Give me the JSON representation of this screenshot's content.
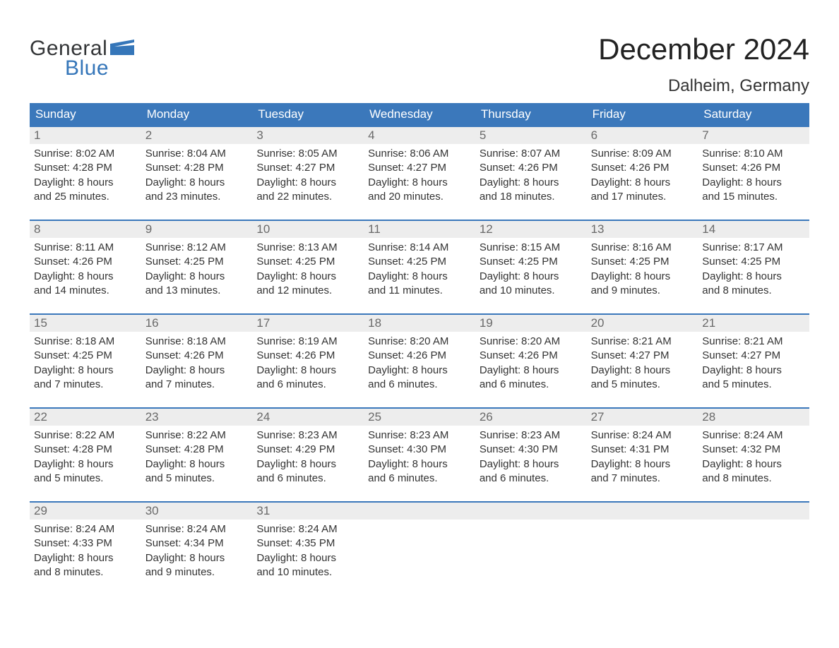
{
  "brand": {
    "word_general": "General",
    "word_blue": "Blue",
    "flag_color": "#3576b9",
    "text_dark": "#333537"
  },
  "header": {
    "title": "December 2024",
    "location": "Dalheim, Germany"
  },
  "colors": {
    "header_bg": "#3b78bb",
    "header_text": "#ffffff",
    "row_border": "#3b78bb",
    "daynum_bg": "#ededed",
    "daynum_text": "#6a6a6a",
    "body_text": "#333333",
    "page_bg": "#ffffff"
  },
  "layout": {
    "columns": 7,
    "rows": 5,
    "cell_font_size_pt": 11,
    "header_font_size_pt": 13,
    "title_font_size_pt": 32,
    "location_font_size_pt": 18
  },
  "day_headers": [
    "Sunday",
    "Monday",
    "Tuesday",
    "Wednesday",
    "Thursday",
    "Friday",
    "Saturday"
  ],
  "weeks": [
    [
      {
        "n": "1",
        "sr": "Sunrise: 8:02 AM",
        "ss": "Sunset: 4:28 PM",
        "d1": "Daylight: 8 hours",
        "d2": "and 25 minutes."
      },
      {
        "n": "2",
        "sr": "Sunrise: 8:04 AM",
        "ss": "Sunset: 4:28 PM",
        "d1": "Daylight: 8 hours",
        "d2": "and 23 minutes."
      },
      {
        "n": "3",
        "sr": "Sunrise: 8:05 AM",
        "ss": "Sunset: 4:27 PM",
        "d1": "Daylight: 8 hours",
        "d2": "and 22 minutes."
      },
      {
        "n": "4",
        "sr": "Sunrise: 8:06 AM",
        "ss": "Sunset: 4:27 PM",
        "d1": "Daylight: 8 hours",
        "d2": "and 20 minutes."
      },
      {
        "n": "5",
        "sr": "Sunrise: 8:07 AM",
        "ss": "Sunset: 4:26 PM",
        "d1": "Daylight: 8 hours",
        "d2": "and 18 minutes."
      },
      {
        "n": "6",
        "sr": "Sunrise: 8:09 AM",
        "ss": "Sunset: 4:26 PM",
        "d1": "Daylight: 8 hours",
        "d2": "and 17 minutes."
      },
      {
        "n": "7",
        "sr": "Sunrise: 8:10 AM",
        "ss": "Sunset: 4:26 PM",
        "d1": "Daylight: 8 hours",
        "d2": "and 15 minutes."
      }
    ],
    [
      {
        "n": "8",
        "sr": "Sunrise: 8:11 AM",
        "ss": "Sunset: 4:26 PM",
        "d1": "Daylight: 8 hours",
        "d2": "and 14 minutes."
      },
      {
        "n": "9",
        "sr": "Sunrise: 8:12 AM",
        "ss": "Sunset: 4:25 PM",
        "d1": "Daylight: 8 hours",
        "d2": "and 13 minutes."
      },
      {
        "n": "10",
        "sr": "Sunrise: 8:13 AM",
        "ss": "Sunset: 4:25 PM",
        "d1": "Daylight: 8 hours",
        "d2": "and 12 minutes."
      },
      {
        "n": "11",
        "sr": "Sunrise: 8:14 AM",
        "ss": "Sunset: 4:25 PM",
        "d1": "Daylight: 8 hours",
        "d2": "and 11 minutes."
      },
      {
        "n": "12",
        "sr": "Sunrise: 8:15 AM",
        "ss": "Sunset: 4:25 PM",
        "d1": "Daylight: 8 hours",
        "d2": "and 10 minutes."
      },
      {
        "n": "13",
        "sr": "Sunrise: 8:16 AM",
        "ss": "Sunset: 4:25 PM",
        "d1": "Daylight: 8 hours",
        "d2": "and 9 minutes."
      },
      {
        "n": "14",
        "sr": "Sunrise: 8:17 AM",
        "ss": "Sunset: 4:25 PM",
        "d1": "Daylight: 8 hours",
        "d2": "and 8 minutes."
      }
    ],
    [
      {
        "n": "15",
        "sr": "Sunrise: 8:18 AM",
        "ss": "Sunset: 4:25 PM",
        "d1": "Daylight: 8 hours",
        "d2": "and 7 minutes."
      },
      {
        "n": "16",
        "sr": "Sunrise: 8:18 AM",
        "ss": "Sunset: 4:26 PM",
        "d1": "Daylight: 8 hours",
        "d2": "and 7 minutes."
      },
      {
        "n": "17",
        "sr": "Sunrise: 8:19 AM",
        "ss": "Sunset: 4:26 PM",
        "d1": "Daylight: 8 hours",
        "d2": "and 6 minutes."
      },
      {
        "n": "18",
        "sr": "Sunrise: 8:20 AM",
        "ss": "Sunset: 4:26 PM",
        "d1": "Daylight: 8 hours",
        "d2": "and 6 minutes."
      },
      {
        "n": "19",
        "sr": "Sunrise: 8:20 AM",
        "ss": "Sunset: 4:26 PM",
        "d1": "Daylight: 8 hours",
        "d2": "and 6 minutes."
      },
      {
        "n": "20",
        "sr": "Sunrise: 8:21 AM",
        "ss": "Sunset: 4:27 PM",
        "d1": "Daylight: 8 hours",
        "d2": "and 5 minutes."
      },
      {
        "n": "21",
        "sr": "Sunrise: 8:21 AM",
        "ss": "Sunset: 4:27 PM",
        "d1": "Daylight: 8 hours",
        "d2": "and 5 minutes."
      }
    ],
    [
      {
        "n": "22",
        "sr": "Sunrise: 8:22 AM",
        "ss": "Sunset: 4:28 PM",
        "d1": "Daylight: 8 hours",
        "d2": "and 5 minutes."
      },
      {
        "n": "23",
        "sr": "Sunrise: 8:22 AM",
        "ss": "Sunset: 4:28 PM",
        "d1": "Daylight: 8 hours",
        "d2": "and 5 minutes."
      },
      {
        "n": "24",
        "sr": "Sunrise: 8:23 AM",
        "ss": "Sunset: 4:29 PM",
        "d1": "Daylight: 8 hours",
        "d2": "and 6 minutes."
      },
      {
        "n": "25",
        "sr": "Sunrise: 8:23 AM",
        "ss": "Sunset: 4:30 PM",
        "d1": "Daylight: 8 hours",
        "d2": "and 6 minutes."
      },
      {
        "n": "26",
        "sr": "Sunrise: 8:23 AM",
        "ss": "Sunset: 4:30 PM",
        "d1": "Daylight: 8 hours",
        "d2": "and 6 minutes."
      },
      {
        "n": "27",
        "sr": "Sunrise: 8:24 AM",
        "ss": "Sunset: 4:31 PM",
        "d1": "Daylight: 8 hours",
        "d2": "and 7 minutes."
      },
      {
        "n": "28",
        "sr": "Sunrise: 8:24 AM",
        "ss": "Sunset: 4:32 PM",
        "d1": "Daylight: 8 hours",
        "d2": "and 8 minutes."
      }
    ],
    [
      {
        "n": "29",
        "sr": "Sunrise: 8:24 AM",
        "ss": "Sunset: 4:33 PM",
        "d1": "Daylight: 8 hours",
        "d2": "and 8 minutes."
      },
      {
        "n": "30",
        "sr": "Sunrise: 8:24 AM",
        "ss": "Sunset: 4:34 PM",
        "d1": "Daylight: 8 hours",
        "d2": "and 9 minutes."
      },
      {
        "n": "31",
        "sr": "Sunrise: 8:24 AM",
        "ss": "Sunset: 4:35 PM",
        "d1": "Daylight: 8 hours",
        "d2": "and 10 minutes."
      },
      {
        "empty": true
      },
      {
        "empty": true
      },
      {
        "empty": true
      },
      {
        "empty": true
      }
    ]
  ]
}
